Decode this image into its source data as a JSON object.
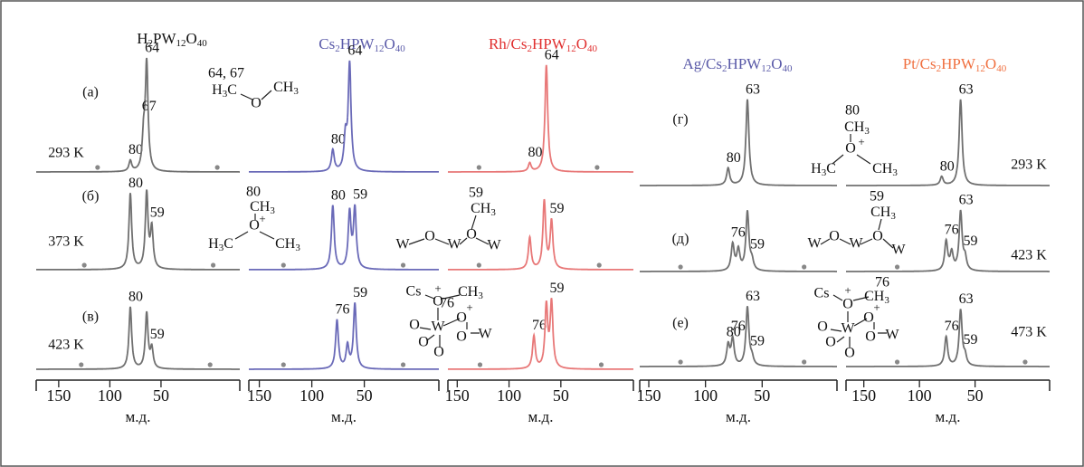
{
  "chart_data": [
    {
      "type": "line",
      "title": "H2PW12O40",
      "title_color": "#111111",
      "color": "#707070",
      "xlabel": "м.д.",
      "xlim": [
        172,
        -27
      ],
      "xticks": [
        150,
        100,
        50
      ],
      "spectra": [
        {
          "label": "(а)",
          "temperature": "293 K",
          "labeled_peaks": [
            {
              "ppm": 64,
              "height": 1.0
            },
            {
              "ppm": 67,
              "height": 0.3
            },
            {
              "ppm": 80,
              "height": 0.1
            }
          ],
          "other_peaks": [],
          "sidebands": [
            112,
            -5
          ]
        },
        {
          "label": "(б)",
          "temperature": "373 K",
          "labeled_peaks": [
            {
              "ppm": 80,
              "height": 0.95
            },
            {
              "ppm": 59,
              "height": 0.5
            }
          ],
          "other_peaks": [
            {
              "ppm": 64,
              "height": 0.95
            }
          ],
          "sidebands": [
            125,
            -1
          ]
        },
        {
          "label": "(в)",
          "temperature": "423 K",
          "labeled_peaks": [
            {
              "ppm": 80,
              "height": 0.95
            },
            {
              "ppm": 59,
              "height": 0.3
            }
          ],
          "other_peaks": [
            {
              "ppm": 64,
              "height": 0.85
            }
          ],
          "sidebands": [
            128,
            2
          ]
        }
      ]
    },
    {
      "type": "line",
      "title": "Cs2HPW12O40",
      "title_color": "#5a5aa8",
      "color": "#6a6ab8",
      "xlabel": "м.д.",
      "xlim": [
        160,
        -21
      ],
      "xticks": [
        150,
        100,
        50
      ],
      "spectra": [
        {
          "labeled_peaks": [
            {
              "ppm": 64,
              "height": 1.0
            },
            {
              "ppm": 80,
              "height": 0.2
            }
          ],
          "other_peaks": [
            {
              "ppm": 68,
              "height": 0.3
            }
          ],
          "sidebands": []
        },
        {
          "labeled_peaks": [
            {
              "ppm": 80,
              "height": 0.8
            },
            {
              "ppm": 59,
              "height": 0.75
            }
          ],
          "other_peaks": [
            {
              "ppm": 64,
              "height": 0.7
            }
          ],
          "sidebands": [
            127,
            13
          ]
        },
        {
          "labeled_peaks": [
            {
              "ppm": 76,
              "height": 0.75
            },
            {
              "ppm": 59,
              "height": 1.0
            }
          ],
          "other_peaks": [
            {
              "ppm": 66,
              "height": 0.35
            }
          ],
          "sidebands": [
            127,
            13
          ]
        }
      ]
    },
    {
      "type": "line",
      "title": "Rh/Cs2HPW12O40",
      "title_color": "#e03030",
      "color": "#e87878",
      "xlabel": "м.д.",
      "xlim": [
        159,
        -20
      ],
      "xticks": [
        150,
        100,
        50
      ],
      "spectra": [
        {
          "labeled_peaks": [
            {
              "ppm": 64,
              "height": 1.0
            },
            {
              "ppm": 80,
              "height": 0.08
            }
          ],
          "other_peaks": [],
          "sidebands": [
            129,
            15
          ]
        },
        {
          "labeled_peaks": [
            {
              "ppm": 59,
              "height": 0.6
            }
          ],
          "other_peaks": [
            {
              "ppm": 80,
              "height": 0.4
            },
            {
              "ppm": 66,
              "height": 0.85
            }
          ],
          "sidebands": [
            129,
            13
          ]
        },
        {
          "labeled_peaks": [
            {
              "ppm": 76,
              "height": 0.5
            },
            {
              "ppm": 59,
              "height": 1.0
            }
          ],
          "other_peaks": [
            {
              "ppm": 64,
              "height": 0.95
            }
          ],
          "sidebands": [
            128,
            11
          ]
        }
      ]
    },
    {
      "type": "line",
      "title": "Ag/Cs2HPW12O40",
      "title_color": "#5a5aa8",
      "color": "#707070",
      "xlabel": "м.д.",
      "xlim": [
        158,
        -16
      ],
      "xticks": [
        150,
        100,
        50
      ],
      "spectra": [
        {
          "label": "(г)",
          "labeled_peaks": [
            {
              "ppm": 63,
              "height": 1.0
            },
            {
              "ppm": 80,
              "height": 0.2
            }
          ],
          "other_peaks": [],
          "sidebands": []
        },
        {
          "label": "(д)",
          "labeled_peaks": [
            {
              "ppm": 76,
              "height": 0.45
            },
            {
              "ppm": 59,
              "height": 0.15
            }
          ],
          "other_peaks": [
            {
              "ppm": 63,
              "height": 1.0
            },
            {
              "ppm": 71,
              "height": 0.35
            }
          ],
          "sidebands": [
            122,
            13
          ]
        },
        {
          "label": "(е)",
          "labeled_peaks": [
            {
              "ppm": 80,
              "height": 0.35
            },
            {
              "ppm": 76,
              "height": 0.45
            },
            {
              "ppm": 63,
              "height": 1.0
            },
            {
              "ppm": 59,
              "height": 0.12
            }
          ],
          "other_peaks": [],
          "sidebands": [
            122,
            13
          ]
        }
      ]
    },
    {
      "type": "line",
      "title": "Pt/Cs2HPW12O40",
      "title_color": "#f07040",
      "color": "#707070",
      "xlabel": "м.д.",
      "xlim": [
        166,
        -17
      ],
      "xticks": [
        150,
        100,
        50
      ],
      "spectra": [
        {
          "temperature": "293 K",
          "labeled_peaks": [
            {
              "ppm": 63,
              "height": 1.0
            },
            {
              "ppm": 80,
              "height": 0.1
            }
          ],
          "other_peaks": [],
          "sidebands": []
        },
        {
          "temperature": "423 K",
          "labeled_peaks": [
            {
              "ppm": 76,
              "height": 0.5
            },
            {
              "ppm": 63,
              "height": 1.0
            },
            {
              "ppm": 59,
              "height": 0.2
            }
          ],
          "other_peaks": [
            {
              "ppm": 71,
              "height": 0.3
            }
          ],
          "sidebands": [
            120
          ]
        },
        {
          "temperature": "473 K",
          "labeled_peaks": [
            {
              "ppm": 76,
              "height": 0.5
            },
            {
              "ppm": 63,
              "height": 0.95
            },
            {
              "ppm": 59,
              "height": 0.15
            }
          ],
          "other_peaks": [],
          "sidebands": [
            120,
            5
          ]
        }
      ]
    }
  ],
  "structures": [
    {
      "atoms": [
        "64, 67",
        "H3C",
        "CH3",
        "O"
      ]
    },
    {
      "atoms": [
        "80",
        "CH3",
        "O",
        "+",
        "H3C",
        "CH3"
      ]
    },
    {
      "atoms": [
        "59",
        "CH3",
        "W",
        "O",
        "W",
        "O",
        "W"
      ]
    },
    {
      "atoms": [
        "Cs",
        "+",
        "O",
        "76",
        "CH3",
        "O",
        "+",
        "O",
        "W",
        "O",
        "O",
        "O",
        "W"
      ]
    },
    {
      "atoms": [
        "80",
        "CH3",
        "O",
        "+",
        "H3C",
        "CH3"
      ]
    },
    {
      "atoms": [
        "59",
        "CH3",
        "W",
        "O",
        "W",
        "O",
        "W"
      ]
    },
    {
      "atoms": [
        "Cs",
        "+",
        "O",
        "76",
        "CH3",
        "O",
        "+",
        "O",
        "W",
        "O",
        "O",
        "O",
        "W"
      ]
    }
  ]
}
